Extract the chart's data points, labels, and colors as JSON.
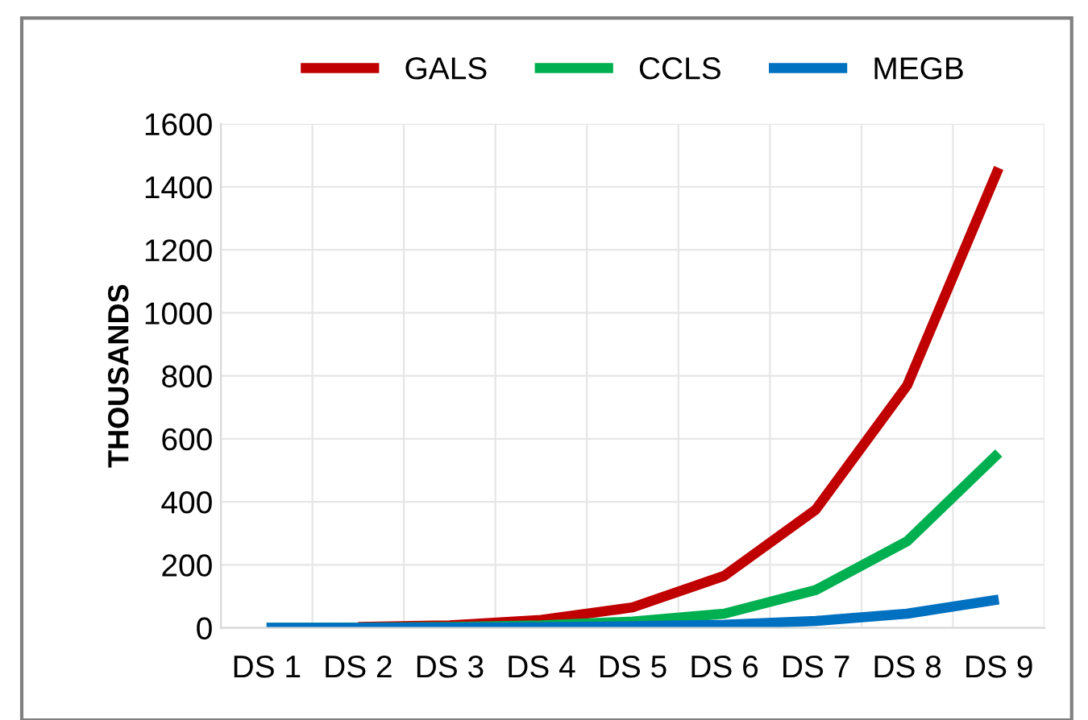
{
  "chart_data": {
    "type": "line",
    "ylabel": "THOUSANDS",
    "categories": [
      "DS 1",
      "DS 2",
      "DS 3",
      "DS 4",
      "DS 5",
      "DS 6",
      "DS 7",
      "DS 8",
      "DS 9"
    ],
    "series": [
      {
        "name": "GALS",
        "color": "#c00000",
        "values": [
          null,
          3,
          8,
          25,
          65,
          165,
          375,
          770,
          1460
        ]
      },
      {
        "name": "CCLS",
        "color": "#00b050",
        "values": [
          0,
          1,
          3,
          8,
          20,
          45,
          120,
          275,
          555
        ]
      },
      {
        "name": "MEGB",
        "color": "#0070c0",
        "values": [
          0,
          0,
          1,
          2,
          5,
          10,
          22,
          45,
          90
        ]
      }
    ],
    "ylim": [
      0,
      1600
    ],
    "yticks": [
      0,
      200,
      400,
      600,
      800,
      1000,
      1200,
      1400,
      1600
    ],
    "grid": true,
    "legend": "top",
    "marker": "none",
    "line_style": "solid"
  }
}
